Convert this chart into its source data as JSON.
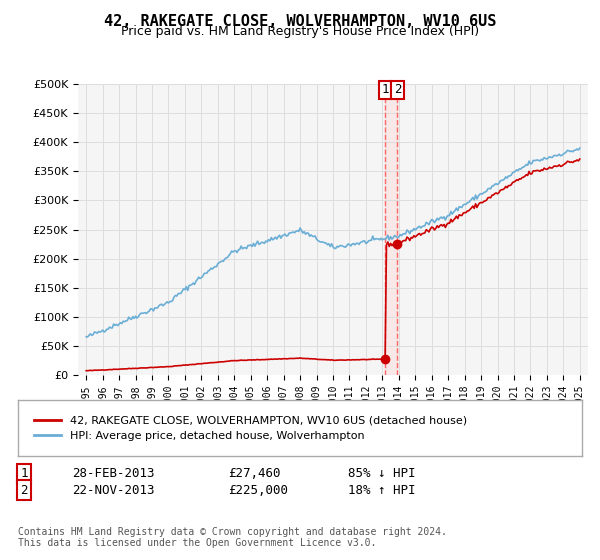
{
  "title": "42, RAKEGATE CLOSE, WOLVERHAMPTON, WV10 6US",
  "subtitle": "Price paid vs. HM Land Registry's House Price Index (HPI)",
  "legend_line1": "42, RAKEGATE CLOSE, WOLVERHAMPTON, WV10 6US (detached house)",
  "legend_line2": "HPI: Average price, detached house, Wolverhampton",
  "footnote": "Contains HM Land Registry data © Crown copyright and database right 2024.\nThis data is licensed under the Open Government Licence v3.0.",
  "marker1_date": "28-FEB-2013",
  "marker1_price": "£27,460",
  "marker1_pct": "85% ↓ HPI",
  "marker2_date": "22-NOV-2013",
  "marker2_price": "£225,000",
  "marker2_pct": "18% ↑ HPI",
  "ylim": [
    0,
    500000
  ],
  "yticks": [
    0,
    50000,
    100000,
    150000,
    200000,
    250000,
    300000,
    350000,
    400000,
    450000,
    500000
  ],
  "hpi_color": "#6aaed6",
  "price_color": "#cc0000",
  "vline_color": "#ff6666",
  "background_chart": "#f5f5f5",
  "background_fig": "#ffffff",
  "grid_color": "#dddddd"
}
